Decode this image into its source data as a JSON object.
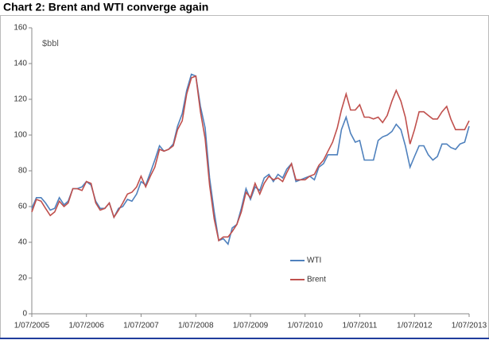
{
  "chart_data": {
    "type": "line",
    "title": "Chart 2: Brent and WTI converge again",
    "ylabel": "$bbl",
    "x": [
      "2005-07-01",
      "2005-08-01",
      "2005-09-01",
      "2005-10-01",
      "2005-11-01",
      "2005-12-01",
      "2006-01-01",
      "2006-02-01",
      "2006-03-01",
      "2006-04-01",
      "2006-05-01",
      "2006-06-01",
      "2006-07-01",
      "2006-08-01",
      "2006-09-01",
      "2006-10-01",
      "2006-11-01",
      "2006-12-01",
      "2007-01-01",
      "2007-02-01",
      "2007-03-01",
      "2007-04-01",
      "2007-05-01",
      "2007-06-01",
      "2007-07-01",
      "2007-08-01",
      "2007-09-01",
      "2007-10-01",
      "2007-11-01",
      "2007-12-01",
      "2008-01-01",
      "2008-02-01",
      "2008-03-01",
      "2008-04-01",
      "2008-05-01",
      "2008-06-01",
      "2008-07-01",
      "2008-08-01",
      "2008-09-01",
      "2008-10-01",
      "2008-11-01",
      "2008-12-01",
      "2009-01-01",
      "2009-02-01",
      "2009-03-01",
      "2009-04-01",
      "2009-05-01",
      "2009-06-01",
      "2009-07-01",
      "2009-08-01",
      "2009-09-01",
      "2009-10-01",
      "2009-11-01",
      "2009-12-01",
      "2010-01-01",
      "2010-02-01",
      "2010-03-01",
      "2010-04-01",
      "2010-05-01",
      "2010-06-01",
      "2010-07-01",
      "2010-08-01",
      "2010-09-01",
      "2010-10-01",
      "2010-11-01",
      "2010-12-01",
      "2011-01-01",
      "2011-02-01",
      "2011-03-01",
      "2011-04-01",
      "2011-05-01",
      "2011-06-01",
      "2011-07-01",
      "2011-08-01",
      "2011-09-01",
      "2011-10-01",
      "2011-11-01",
      "2011-12-01",
      "2012-01-01",
      "2012-02-01",
      "2012-03-01",
      "2012-04-01",
      "2012-05-01",
      "2012-06-01",
      "2012-07-01",
      "2012-08-01",
      "2012-09-01",
      "2012-10-01",
      "2012-11-01",
      "2012-12-01",
      "2013-01-01",
      "2013-02-01",
      "2013-03-01",
      "2013-04-01",
      "2013-05-01",
      "2013-06-01",
      "2013-07-01"
    ],
    "series": [
      {
        "name": "WTI",
        "color": "#4f81bd",
        "values": [
          59,
          65,
          65,
          62,
          58,
          59,
          65,
          61,
          63,
          70,
          70,
          71,
          74,
          72,
          63,
          59,
          59,
          62,
          54,
          59,
          60,
          64,
          63,
          67,
          74,
          72,
          79,
          86,
          94,
          91,
          92,
          95,
          105,
          112,
          125,
          134,
          133,
          116,
          104,
          76,
          57,
          41,
          42,
          39,
          48,
          50,
          59,
          70,
          64,
          71,
          69,
          76,
          78,
          74,
          78,
          76,
          81,
          84,
          74,
          75,
          76,
          77,
          75,
          82,
          84,
          89,
          89,
          89,
          103,
          110,
          101,
          96,
          97,
          86,
          86,
          86,
          97,
          99,
          100,
          102,
          106,
          103,
          94,
          82,
          88,
          94,
          94,
          89,
          86,
          88,
          95,
          95,
          93,
          92,
          95,
          96,
          105
        ]
      },
      {
        "name": "Brent",
        "color": "#c0504d",
        "values": [
          57,
          64,
          63,
          59,
          55,
          57,
          63,
          60,
          62,
          70,
          70,
          69,
          74,
          73,
          62,
          58,
          59,
          62,
          54,
          58,
          62,
          67,
          68,
          71,
          77,
          71,
          77,
          82,
          92,
          91,
          92,
          94,
          103,
          108,
          123,
          132,
          133,
          113,
          98,
          72,
          53,
          41,
          43,
          43,
          46,
          50,
          57,
          68,
          65,
          73,
          67,
          73,
          77,
          75,
          76,
          74,
          79,
          84,
          75,
          75,
          75,
          77,
          78,
          83,
          86,
          91,
          96,
          104,
          114,
          123,
          114,
          114,
          117,
          110,
          110,
          109,
          110,
          107,
          111,
          119,
          125,
          119,
          110,
          95,
          103,
          113,
          113,
          111,
          109,
          109,
          113,
          116,
          109,
          103,
          103,
          103,
          108
        ]
      }
    ],
    "xticks": [
      {
        "value": "2005-07-01",
        "label": "1/07/2005"
      },
      {
        "value": "2006-07-01",
        "label": "1/07/2006"
      },
      {
        "value": "2007-07-01",
        "label": "1/07/2007"
      },
      {
        "value": "2008-07-01",
        "label": "1/07/2008"
      },
      {
        "value": "2009-07-01",
        "label": "1/07/2009"
      },
      {
        "value": "2010-07-01",
        "label": "1/07/2010"
      },
      {
        "value": "2011-07-01",
        "label": "1/07/2011"
      },
      {
        "value": "2012-07-01",
        "label": "1/07/2012"
      },
      {
        "value": "2013-07-01",
        "label": "1/07/2013"
      }
    ],
    "ylim": [
      0,
      160
    ],
    "yticks": [
      0,
      20,
      40,
      60,
      80,
      100,
      120,
      140,
      160
    ],
    "grid": false
  }
}
